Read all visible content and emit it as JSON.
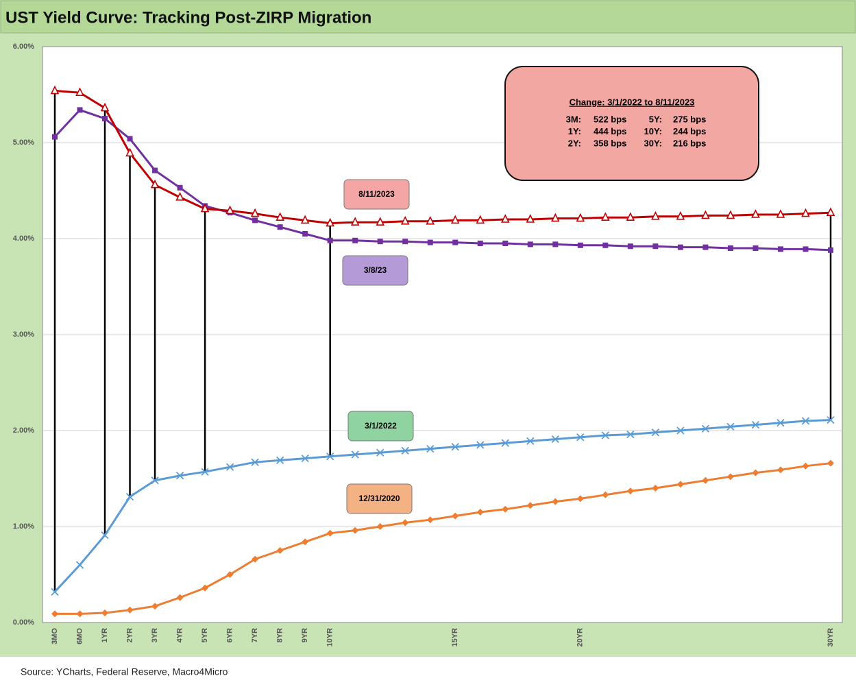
{
  "chart_data": {
    "type": "line",
    "title": "UST Yield Curve: Tracking Post-ZIRP Migration",
    "source": "Source: YCharts, Federal Reserve, Macro4Micro",
    "categories": [
      "3MO",
      "6MO",
      "1YR",
      "2YR",
      "3YR",
      "4YR",
      "5YR",
      "6YR",
      "7YR",
      "8YR",
      "9YR",
      "10YR",
      null,
      null,
      null,
      null,
      "15YR",
      null,
      null,
      null,
      null,
      "20YR",
      null,
      null,
      null,
      null,
      null,
      null,
      null,
      null,
      null,
      "30YR"
    ],
    "ylim": [
      0,
      6
    ],
    "yticks": [
      {
        "value": 0,
        "label": "0.00%"
      },
      {
        "value": 1,
        "label": "1.00%"
      },
      {
        "value": 2,
        "label": "2.00%"
      },
      {
        "value": 3,
        "label": "3.00%"
      },
      {
        "value": 4,
        "label": "4.00%"
      },
      {
        "value": 5,
        "label": "5.00%"
      },
      {
        "value": 6,
        "label": "6.00%"
      }
    ],
    "grid": true,
    "series": [
      {
        "name": "8/11/2023",
        "color": "#c00000",
        "marker": "triangle-open",
        "label_color": "#f4a6a6",
        "values": [
          5.54,
          5.52,
          5.36,
          4.89,
          4.56,
          4.43,
          4.31,
          4.29,
          4.26,
          4.22,
          4.19,
          4.16,
          4.17,
          4.17,
          4.18,
          4.18,
          4.19,
          4.19,
          4.2,
          4.2,
          4.21,
          4.21,
          4.22,
          4.22,
          4.23,
          4.23,
          4.24,
          4.24,
          4.25,
          4.25,
          4.26,
          4.27
        ]
      },
      {
        "name": "3/8/23",
        "color": "#7030a0",
        "marker": "square",
        "label_color": "#b49ad6",
        "values": [
          5.06,
          5.34,
          5.25,
          5.04,
          4.71,
          4.53,
          4.34,
          4.27,
          4.19,
          4.12,
          4.05,
          3.98,
          3.98,
          3.97,
          3.97,
          3.96,
          3.96,
          3.95,
          3.95,
          3.94,
          3.94,
          3.93,
          3.93,
          3.92,
          3.92,
          3.91,
          3.91,
          3.9,
          3.9,
          3.89,
          3.89,
          3.88
        ]
      },
      {
        "name": "3/1/2022",
        "color": "#5b9bd5",
        "marker": "x",
        "label_color": "#8fd3a0",
        "values": [
          0.32,
          0.6,
          0.91,
          1.31,
          1.48,
          1.53,
          1.57,
          1.62,
          1.67,
          1.69,
          1.71,
          1.73,
          1.75,
          1.77,
          1.79,
          1.81,
          1.83,
          1.85,
          1.87,
          1.89,
          1.91,
          1.93,
          1.95,
          1.96,
          1.98,
          2.0,
          2.02,
          2.04,
          2.06,
          2.08,
          2.1,
          2.11
        ]
      },
      {
        "name": "12/31/2020",
        "color": "#ed7d31",
        "marker": "diamond",
        "label_color": "#f4b183",
        "values": [
          0.09,
          0.09,
          0.1,
          0.13,
          0.17,
          0.26,
          0.36,
          0.5,
          0.66,
          0.75,
          0.84,
          0.93,
          0.96,
          1.0,
          1.04,
          1.07,
          1.11,
          1.15,
          1.18,
          1.22,
          1.26,
          1.29,
          1.33,
          1.37,
          1.4,
          1.44,
          1.48,
          1.52,
          1.56,
          1.59,
          1.63,
          1.66
        ]
      }
    ],
    "annotation": {
      "title": "Change: 3/1/2022 to 8/11/2023",
      "rows": [
        [
          "3M:",
          "522 bps",
          "5Y:",
          "275 bps"
        ],
        [
          "1Y:",
          "444 bps",
          "10Y:",
          "244 bps"
        ],
        [
          "2Y:",
          "358 bps",
          "30Y:",
          "216 bps"
        ]
      ]
    }
  }
}
